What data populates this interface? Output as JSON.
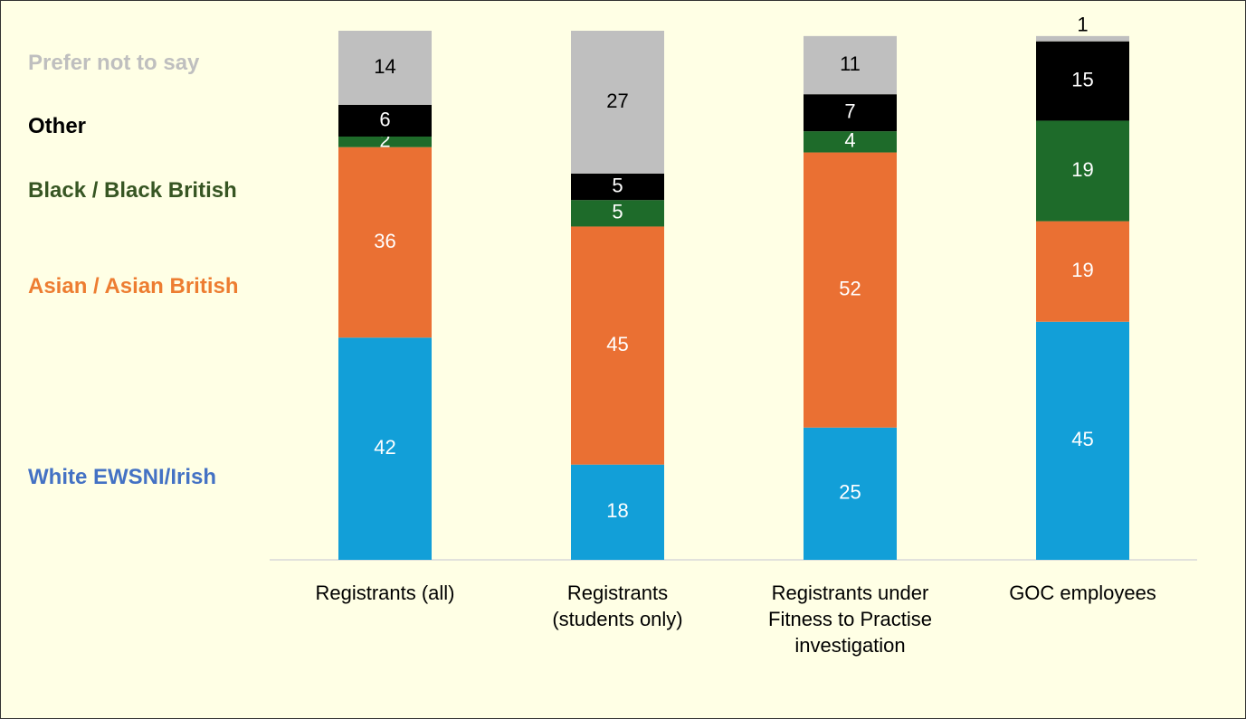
{
  "chart_data": {
    "type": "stacked_bar",
    "categories": [
      "Registrants (all)",
      "Registrants\n(students only)",
      "Registrants under\nFitness to Practise\ninvestigation",
      "GOC employees"
    ],
    "ylim": [
      0,
      100
    ],
    "series": [
      {
        "name": "White EWSNI/Irish",
        "color": "#129fd8",
        "legend_color": "#4472c4",
        "label_color": "#ffffff",
        "values": [
          42,
          18,
          25,
          45
        ]
      },
      {
        "name": "Asian / Asian British",
        "color": "#ea7033",
        "legend_color": "#ed7d31",
        "label_color": "#ffffff",
        "values": [
          36,
          45,
          52,
          19
        ]
      },
      {
        "name": "Black / Black British",
        "color": "#1e6b2a",
        "legend_color": "#375623",
        "label_color": "#ffffff",
        "values": [
          2,
          5,
          4,
          19
        ]
      },
      {
        "name": "Other",
        "color": "#000000",
        "legend_color": "#000000",
        "label_color": "#ffffff",
        "values": [
          6,
          5,
          7,
          15
        ]
      },
      {
        "name": "Prefer not to say",
        "color": "#bfbfbf",
        "legend_color": "#bfbfbf",
        "label_color": "#000000",
        "values": [
          14,
          27,
          11,
          1
        ]
      }
    ]
  }
}
